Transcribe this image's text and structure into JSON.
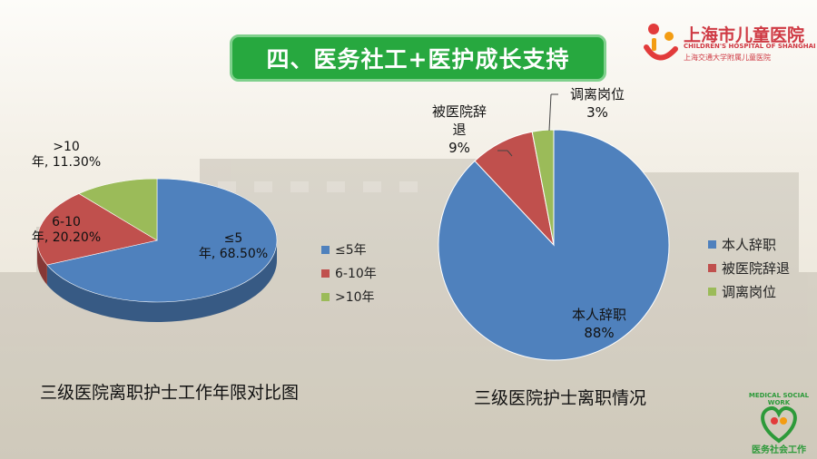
{
  "title": "四、医务社工+医护成长支持",
  "logo": {
    "name": "上海市儿童医院",
    "english": "CHILDREN'S HOSPITAL OF SHANGHAI",
    "subtitle": "上海交通大学附属儿童医院"
  },
  "badge": {
    "top_text": "MEDICAL SOCIAL WORK",
    "bottom_text": "医务社会工作"
  },
  "colors": {
    "blue": "#4f81bd",
    "red": "#c0504d",
    "green": "#9bbb59",
    "banner": "#27a83f"
  },
  "chart_data": [
    {
      "type": "pie",
      "style": "3d",
      "title": "三级医院离职护士工作年限对比图",
      "legend_position": "right",
      "slices": [
        {
          "label": "≤5年",
          "data_label_line1": "≤5",
          "data_label_line2": "年, 68.50%",
          "value": 68.5,
          "color": "#4f81bd"
        },
        {
          "label": "6-10年",
          "data_label_line1": "6-10",
          "data_label_line2": "年, 20.20%",
          "value": 20.2,
          "color": "#c0504d"
        },
        {
          "label": ">10年",
          "data_label_line1": ">10",
          "data_label_line2": "年, 11.30%",
          "value": 11.3,
          "color": "#9bbb59"
        }
      ]
    },
    {
      "type": "pie",
      "title": "三级医院护士离职情况",
      "legend_position": "right",
      "slices": [
        {
          "label": "本人辞职",
          "data_label_line1": "本人辞职",
          "data_label_line2": "88%",
          "value": 88,
          "color": "#4f81bd"
        },
        {
          "label": "被医院辞退",
          "data_label_line1": "被医院辞",
          "data_label_line2": "退",
          "data_label_line3": "9%",
          "value": 9,
          "color": "#c0504d"
        },
        {
          "label": "调离岗位",
          "data_label_line1": "调离岗位",
          "data_label_line2": "3%",
          "value": 3,
          "color": "#9bbb59"
        }
      ]
    }
  ]
}
